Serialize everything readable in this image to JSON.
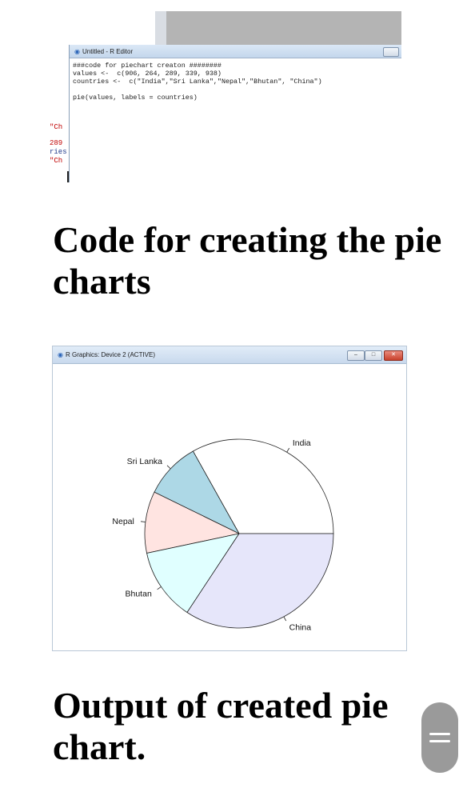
{
  "editor": {
    "title": "Untitled - R Editor",
    "code_lines": [
      "###code for piechart creaton ########",
      "values <-  c(906, 264, 289, 339, 938)",
      "countries <-  c(\"India\",\"Sri Lanka\",\"Nepal\",\"Bhutan\", \"China\")",
      "",
      "pie(values, labels = countries)"
    ],
    "console_fragments": [
      "\"Ch",
      "289",
      "ries",
      "\"Ch"
    ]
  },
  "captions": {
    "code": "Code for creating the pie charts",
    "output": "Output of created pie chart."
  },
  "graphics": {
    "title": "R Graphics: Device 2 (ACTIVE)"
  },
  "chart_data": {
    "type": "pie",
    "categories": [
      "India",
      "Sri Lanka",
      "Nepal",
      "Bhutan",
      "China"
    ],
    "values": [
      906,
      264,
      289,
      339,
      938
    ],
    "colors": [
      "#ffffff",
      "#add8e6",
      "#ffe4e1",
      "#e0ffff",
      "#e6e6fa"
    ],
    "start_angle_deg": 0,
    "direction": "counterclockwise"
  },
  "colors": {
    "menu_button": "#9a9a9a"
  }
}
